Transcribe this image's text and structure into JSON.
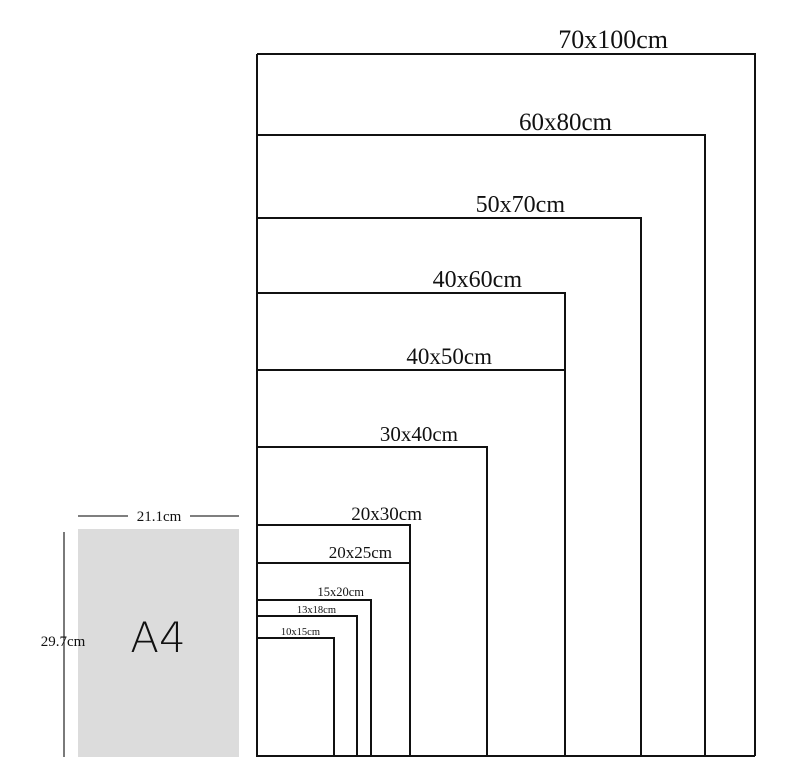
{
  "sizes": [
    {
      "label": "70x100cm"
    },
    {
      "label": "60x80cm"
    },
    {
      "label": "50x70cm"
    },
    {
      "label": "40x60cm"
    },
    {
      "label": "40x50cm"
    },
    {
      "label": "30x40cm"
    },
    {
      "label": "20x30cm"
    },
    {
      "label": "20x25cm"
    },
    {
      "label": "15x20cm"
    },
    {
      "label": "13x18cm"
    },
    {
      "label": "10x15cm"
    }
  ],
  "a4": {
    "name": "A4",
    "width_label": "21.1cm",
    "height_label": "29.7cm",
    "fill": "#dcdcdc"
  },
  "colors": {
    "line": "#111111",
    "background": "#ffffff"
  }
}
